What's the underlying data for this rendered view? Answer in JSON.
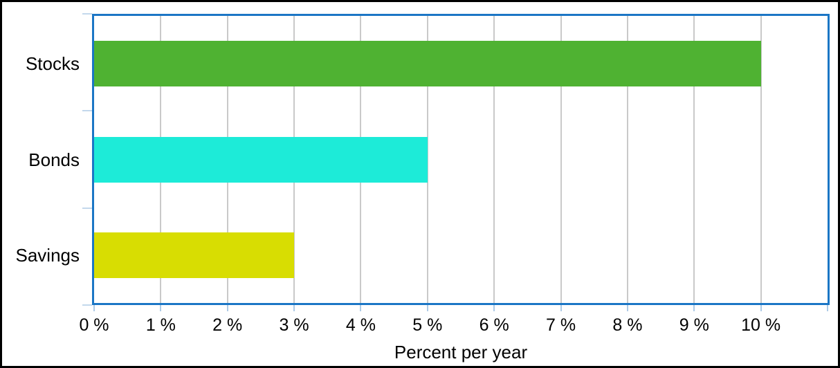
{
  "chart_data": {
    "type": "bar",
    "orientation": "horizontal",
    "title": "",
    "xlabel": "Percent per year",
    "ylabel": "",
    "categories": [
      "Stocks",
      "Bonds",
      "Savings"
    ],
    "values": [
      10,
      5,
      3
    ],
    "unit": "percent",
    "bar_colors": [
      "#4FB232",
      "#1DEBD8",
      "#D8DD02"
    ],
    "xlim": [
      0,
      11
    ],
    "x_ticks": [
      0,
      1,
      2,
      3,
      4,
      5,
      6,
      7,
      8,
      9,
      10
    ],
    "x_tick_labels": [
      "0 %",
      "1 %",
      "2 %",
      "3 %",
      "4 %",
      "5 %",
      "6 %",
      "7 %",
      "8 %",
      "9 %",
      "10 %"
    ],
    "grid": "vertical-only",
    "legend": "none",
    "frame_color": "#1B76C5",
    "gridline_color": "#C9C9C9",
    "x_tick_color": "#AECBE6",
    "y_tick_color": "#C3D8EC",
    "text_color": "#000000",
    "outer_border_color": "#000000",
    "background_color": "#ffffff"
  }
}
